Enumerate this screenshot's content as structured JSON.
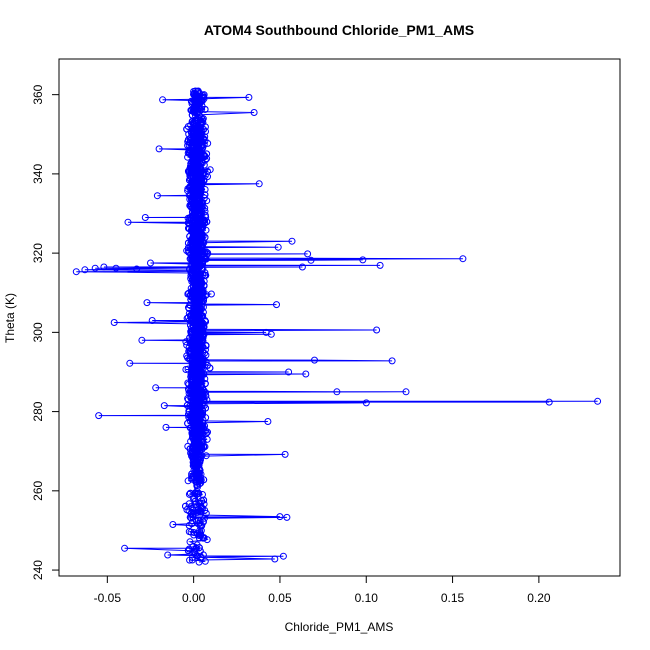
{
  "chart_data": {
    "type": "scatter",
    "title": "ATOM4 Southbound Chloride_PM1_AMS",
    "xlabel": "Chloride_PM1_AMS",
    "ylabel": "Theta (K)",
    "xlim": [
      -0.078,
      0.247
    ],
    "ylim": [
      238.5,
      369
    ],
    "x_ticks": [
      -0.05,
      0.0,
      0.05,
      0.1,
      0.15,
      0.2
    ],
    "x_tick_labels": [
      "-0.05",
      "0.00",
      "0.05",
      "0.10",
      "0.15",
      "0.20"
    ],
    "y_ticks": [
      240,
      260,
      280,
      300,
      320,
      340,
      360
    ],
    "y_tick_labels": [
      "240",
      "260",
      "280",
      "300",
      "320",
      "340",
      "360"
    ],
    "style": "points connected by lines (type b)",
    "grid": false,
    "legend": "none",
    "colors": {
      "series": "#0000ff",
      "axes": "#000000"
    },
    "points_sampled": true,
    "outliers": [
      {
        "x": 0.234,
        "y": 282.6
      },
      {
        "x": 0.206,
        "y": 282.4
      },
      {
        "x": 0.156,
        "y": 318.6
      },
      {
        "x": 0.123,
        "y": 285.0
      },
      {
        "x": 0.115,
        "y": 292.8
      },
      {
        "x": 0.108,
        "y": 316.9
      },
      {
        "x": 0.106,
        "y": 300.6
      },
      {
        "x": 0.098,
        "y": 318.3
      },
      {
        "x": 0.1,
        "y": 282.2
      },
      {
        "x": 0.083,
        "y": 285.0
      },
      {
        "x": 0.066,
        "y": 319.8
      },
      {
        "x": 0.068,
        "y": 318.2
      },
      {
        "x": 0.07,
        "y": 293.0
      },
      {
        "x": 0.065,
        "y": 289.5
      },
      {
        "x": 0.063,
        "y": 316.5
      },
      {
        "x": 0.057,
        "y": 323.0
      },
      {
        "x": 0.055,
        "y": 290.0
      },
      {
        "x": 0.054,
        "y": 253.3
      },
      {
        "x": 0.05,
        "y": 253.5
      },
      {
        "x": 0.053,
        "y": 269.2
      },
      {
        "x": 0.052,
        "y": 243.5
      },
      {
        "x": 0.047,
        "y": 242.8
      },
      {
        "x": 0.049,
        "y": 321.5
      },
      {
        "x": 0.048,
        "y": 307.0
      },
      {
        "x": 0.045,
        "y": 299.5
      },
      {
        "x": 0.043,
        "y": 277.5
      },
      {
        "x": 0.042,
        "y": 300.0
      },
      {
        "x": 0.038,
        "y": 337.5
      },
      {
        "x": 0.035,
        "y": 355.5
      },
      {
        "x": 0.032,
        "y": 359.3
      },
      {
        "x": -0.068,
        "y": 315.3
      },
      {
        "x": -0.063,
        "y": 315.8
      },
      {
        "x": -0.057,
        "y": 316.2
      },
      {
        "x": -0.052,
        "y": 316.5
      },
      {
        "x": -0.055,
        "y": 279.0
      },
      {
        "x": -0.046,
        "y": 302.5
      },
      {
        "x": -0.045,
        "y": 316.2
      },
      {
        "x": -0.04,
        "y": 245.5
      },
      {
        "x": -0.038,
        "y": 327.8
      },
      {
        "x": -0.037,
        "y": 292.2
      },
      {
        "x": -0.033,
        "y": 316.0
      },
      {
        "x": -0.03,
        "y": 298.0
      },
      {
        "x": -0.028,
        "y": 329.0
      },
      {
        "x": -0.027,
        "y": 307.5
      },
      {
        "x": -0.025,
        "y": 317.5
      },
      {
        "x": -0.024,
        "y": 303.0
      },
      {
        "x": -0.022,
        "y": 286.0
      },
      {
        "x": -0.021,
        "y": 334.5
      },
      {
        "x": -0.02,
        "y": 346.3
      },
      {
        "x": -0.018,
        "y": 358.7
      },
      {
        "x": -0.017,
        "y": 281.5
      },
      {
        "x": -0.016,
        "y": 276.0
      },
      {
        "x": -0.015,
        "y": 243.8
      },
      {
        "x": -0.012,
        "y": 251.5
      }
    ]
  }
}
